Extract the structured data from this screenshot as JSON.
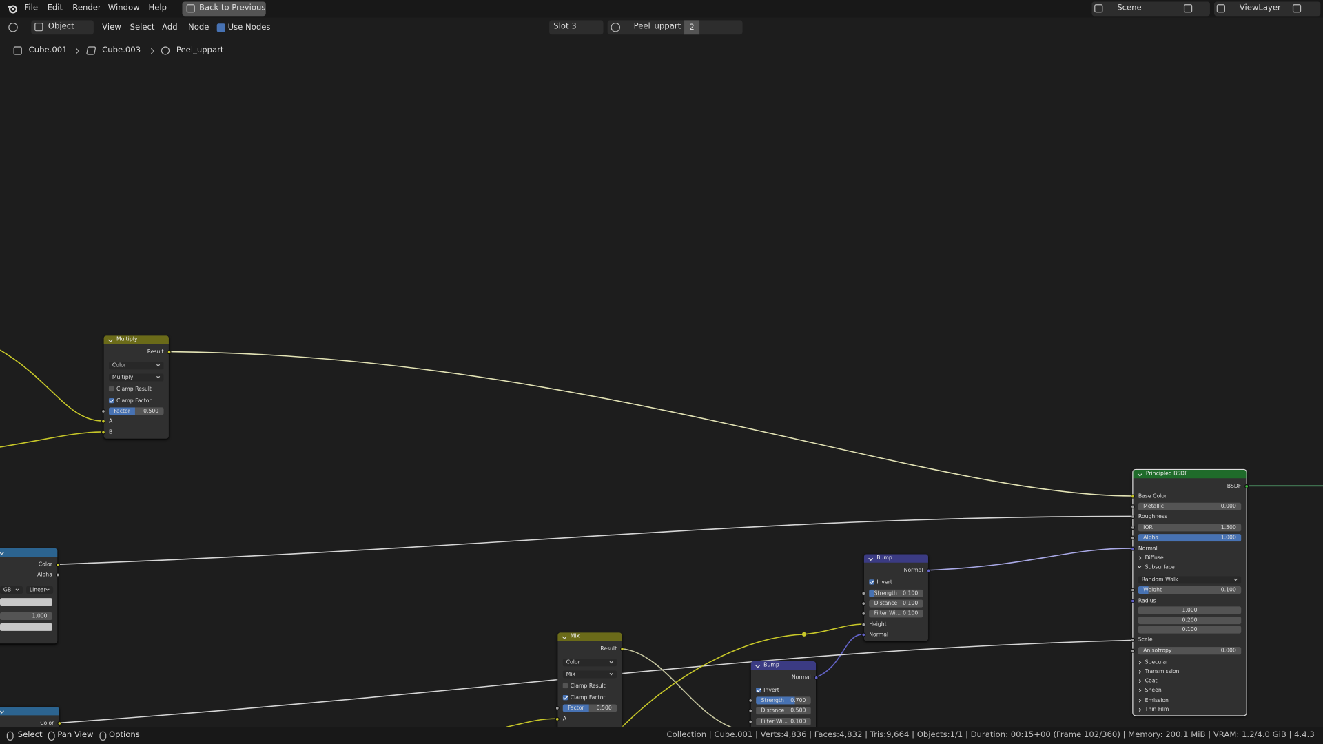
{
  "topbar": {
    "menu": [
      "File",
      "Edit",
      "Render",
      "Window",
      "Help"
    ],
    "back": "Back to Previous",
    "scene": "Scene",
    "view_layer": "ViewLayer"
  },
  "header": {
    "mode": "Object",
    "menu": [
      "View",
      "Select",
      "Add",
      "Node"
    ],
    "use_nodes": "Use Nodes",
    "slot": "Slot 3",
    "material": "Peel_uppart",
    "users": "2"
  },
  "breadcrumbs": [
    "Cube.001",
    "Cube.003",
    "Peel_uppart"
  ],
  "nodes": {
    "multiply": {
      "title": "Multiply",
      "result": "Result",
      "data_type": "Color",
      "blend": "Multiply",
      "clamp_result": "Clamp Result",
      "clamp_factor": "Clamp Factor",
      "factor": {
        "label": "Factor",
        "value": "0.500"
      },
      "inputs": [
        "A",
        "B"
      ]
    },
    "image_top": {
      "color": "Color",
      "alpha": "Alpha",
      "color_space": "GB",
      "interpolation": "Linear",
      "value": "1.000"
    },
    "image_bottom": {
      "color": "Color"
    },
    "mix": {
      "title": "Mix",
      "result": "Result",
      "data_type": "Color",
      "blend": "Mix",
      "clamp_result": "Clamp Result",
      "clamp_factor": "Clamp Factor",
      "factor": {
        "label": "Factor",
        "value": "0.500"
      },
      "inputs": [
        "A"
      ]
    },
    "bump_1": {
      "title": "Bump",
      "output": "Normal",
      "invert": "Invert",
      "strength": {
        "label": "Strength",
        "value": "0.100"
      },
      "distance": {
        "label": "Distance",
        "value": "0.100"
      },
      "filter": {
        "label": "Filter Wi...",
        "value": "0.100"
      },
      "height": "Height",
      "normal": "Normal"
    },
    "bump_2": {
      "title": "Bump",
      "output": "Normal",
      "invert": "Invert",
      "strength": {
        "label": "Strength",
        "value": "0.700"
      },
      "distance": {
        "label": "Distance",
        "value": "0.500"
      },
      "filter": {
        "label": "Filter Wi...",
        "value": "0.100"
      }
    },
    "principled": {
      "title": "Principled BSDF",
      "output": "BSDF",
      "base_color": "Base Color",
      "metallic": {
        "label": "Metallic",
        "value": "0.000"
      },
      "roughness": "Roughness",
      "ior": {
        "label": "IOR",
        "value": "1.500"
      },
      "alpha": {
        "label": "Alpha",
        "value": "1.000"
      },
      "normal": "Normal",
      "diffuse": "Diffuse",
      "subsurface": "Subsurface",
      "method": "Random Walk",
      "weight": {
        "label": "Weight",
        "value": "0.100"
      },
      "radius": "Radius",
      "radius_values": [
        "1.000",
        "0.200",
        "0.100"
      ],
      "scale": "Scale",
      "anisotropy": {
        "label": "Anisotropy",
        "value": "0.000"
      },
      "panels": [
        "Specular",
        "Transmission",
        "Coat",
        "Sheen",
        "Emission",
        "Thin Film"
      ]
    }
  },
  "statusbar": {
    "hints": [
      "Select",
      "Pan View",
      "Options"
    ],
    "info": "Collection | Cube.001 | Verts:4,836 | Faces:4,832 | Tris:9,664 | Objects:1/1 | Duration: 00:15+00 (Frame 102/360) | Memory: 200.1 MiB | VRAM: 1.2/4.0 GiB | 4.4.3"
  }
}
